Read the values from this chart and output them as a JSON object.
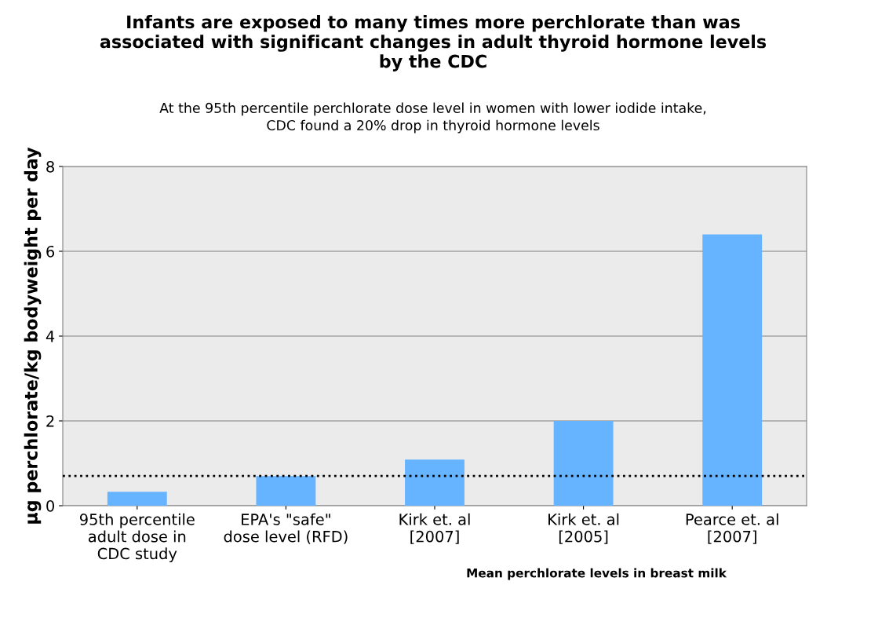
{
  "chart_data": {
    "type": "bar",
    "title": "Infants are exposed to many times more perchlorate than was\nassociated with significant changes in adult thyroid hormone levels\nby the CDC",
    "subtitle": "At the 95th percentile perchlorate dose level in women with lower iodide intake,\nCDC found a 20% drop in thyroid hormone levels",
    "xlabel": "Mean perchlorate levels in breast milk",
    "ylabel": "µg perchlorate/kg bodyweight per day",
    "categories": [
      "95th percentile\nadult dose in\nCDC study",
      "EPA's \"safe\"\ndose level (RFD)",
      "Kirk et. al\n[2007]",
      "Kirk et. al\n[2005]",
      "Pearce et. al\n[2007]"
    ],
    "values": [
      0.33,
      0.7,
      1.09,
      2.0,
      6.4
    ],
    "color": "#66b3ff",
    "ylim": [
      0,
      8
    ],
    "yticks": [
      0,
      2,
      4,
      6,
      8
    ],
    "grid": "y",
    "ref_lines": [
      {
        "axis": "y",
        "value": 0.7,
        "color": "#000000",
        "line_style": "dotted"
      }
    ]
  }
}
